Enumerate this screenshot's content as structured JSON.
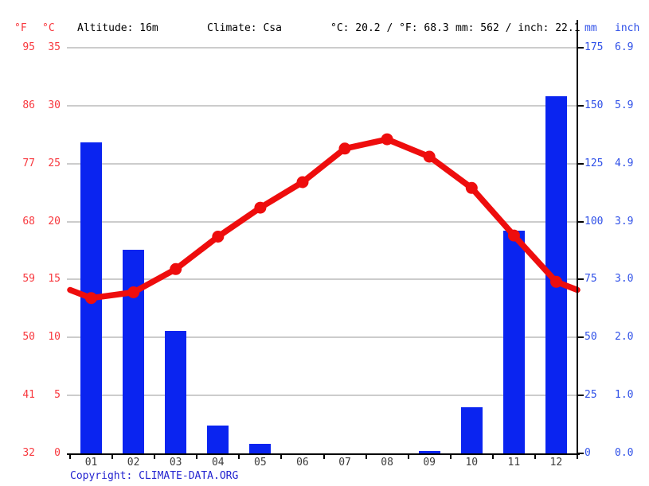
{
  "header": {
    "f_label": "°F",
    "c_label": "°C",
    "altitude": "Altitude: 16m",
    "climate": "Climate: Csa",
    "avg_temp": "°C: 20.2 / °F: 68.3",
    "precip_total": "mm: 562 / inch: 22.1",
    "mm_label": "mm",
    "inch_label": "inch"
  },
  "footer": {
    "copyright_prefix": "Copyright: ",
    "copyright_link": "CLIMATE-DATA.ORG"
  },
  "colors": {
    "bar_blue": "#0a24f0",
    "line_red": "#ee0d0d",
    "red_text": "#f8383e",
    "blue_text": "#2f50e8",
    "copyright_blue": "#2424d0",
    "grid_gray": "#cccccc",
    "axis_black": "#000000",
    "month_text": "#3c3c3c"
  },
  "chart_data": {
    "type": "bar",
    "subtype": "climate bar+line combo",
    "categories": [
      "01",
      "02",
      "03",
      "04",
      "05",
      "06",
      "07",
      "08",
      "09",
      "10",
      "11",
      "12"
    ],
    "series": [
      {
        "name": "precipitation_mm",
        "type": "bar",
        "values": [
          134,
          88,
          53,
          12,
          4,
          0,
          0,
          0,
          1,
          20,
          96,
          154
        ]
      },
      {
        "name": "temperature_c",
        "type": "line",
        "values": [
          13.4,
          13.9,
          15.9,
          18.7,
          21.2,
          23.4,
          26.3,
          27.1,
          25.6,
          22.9,
          18.8,
          14.8
        ]
      }
    ],
    "title": "",
    "xlabel": "",
    "ylabel_left": "°F / °C",
    "ylabel_right": "mm / inch",
    "left_axis": {
      "f_ticks": [
        "95",
        "86",
        "77",
        "68",
        "59",
        "50",
        "41",
        "32"
      ],
      "c_ticks": [
        "35",
        "30",
        "25",
        "20",
        "15",
        "10",
        "5",
        "0"
      ],
      "c_range": [
        0,
        35
      ]
    },
    "right_axis": {
      "mm_ticks": [
        "175",
        "150",
        "125",
        "100",
        "75",
        "50",
        "25",
        "0"
      ],
      "inch_ticks": [
        "6.9",
        "5.9",
        "4.9",
        "3.9",
        "3.0",
        "2.0",
        "1.0",
        "0.0"
      ],
      "mm_range": [
        0,
        175
      ]
    },
    "grid": true,
    "legend": false,
    "line_extends_to_plot_edges": true
  }
}
